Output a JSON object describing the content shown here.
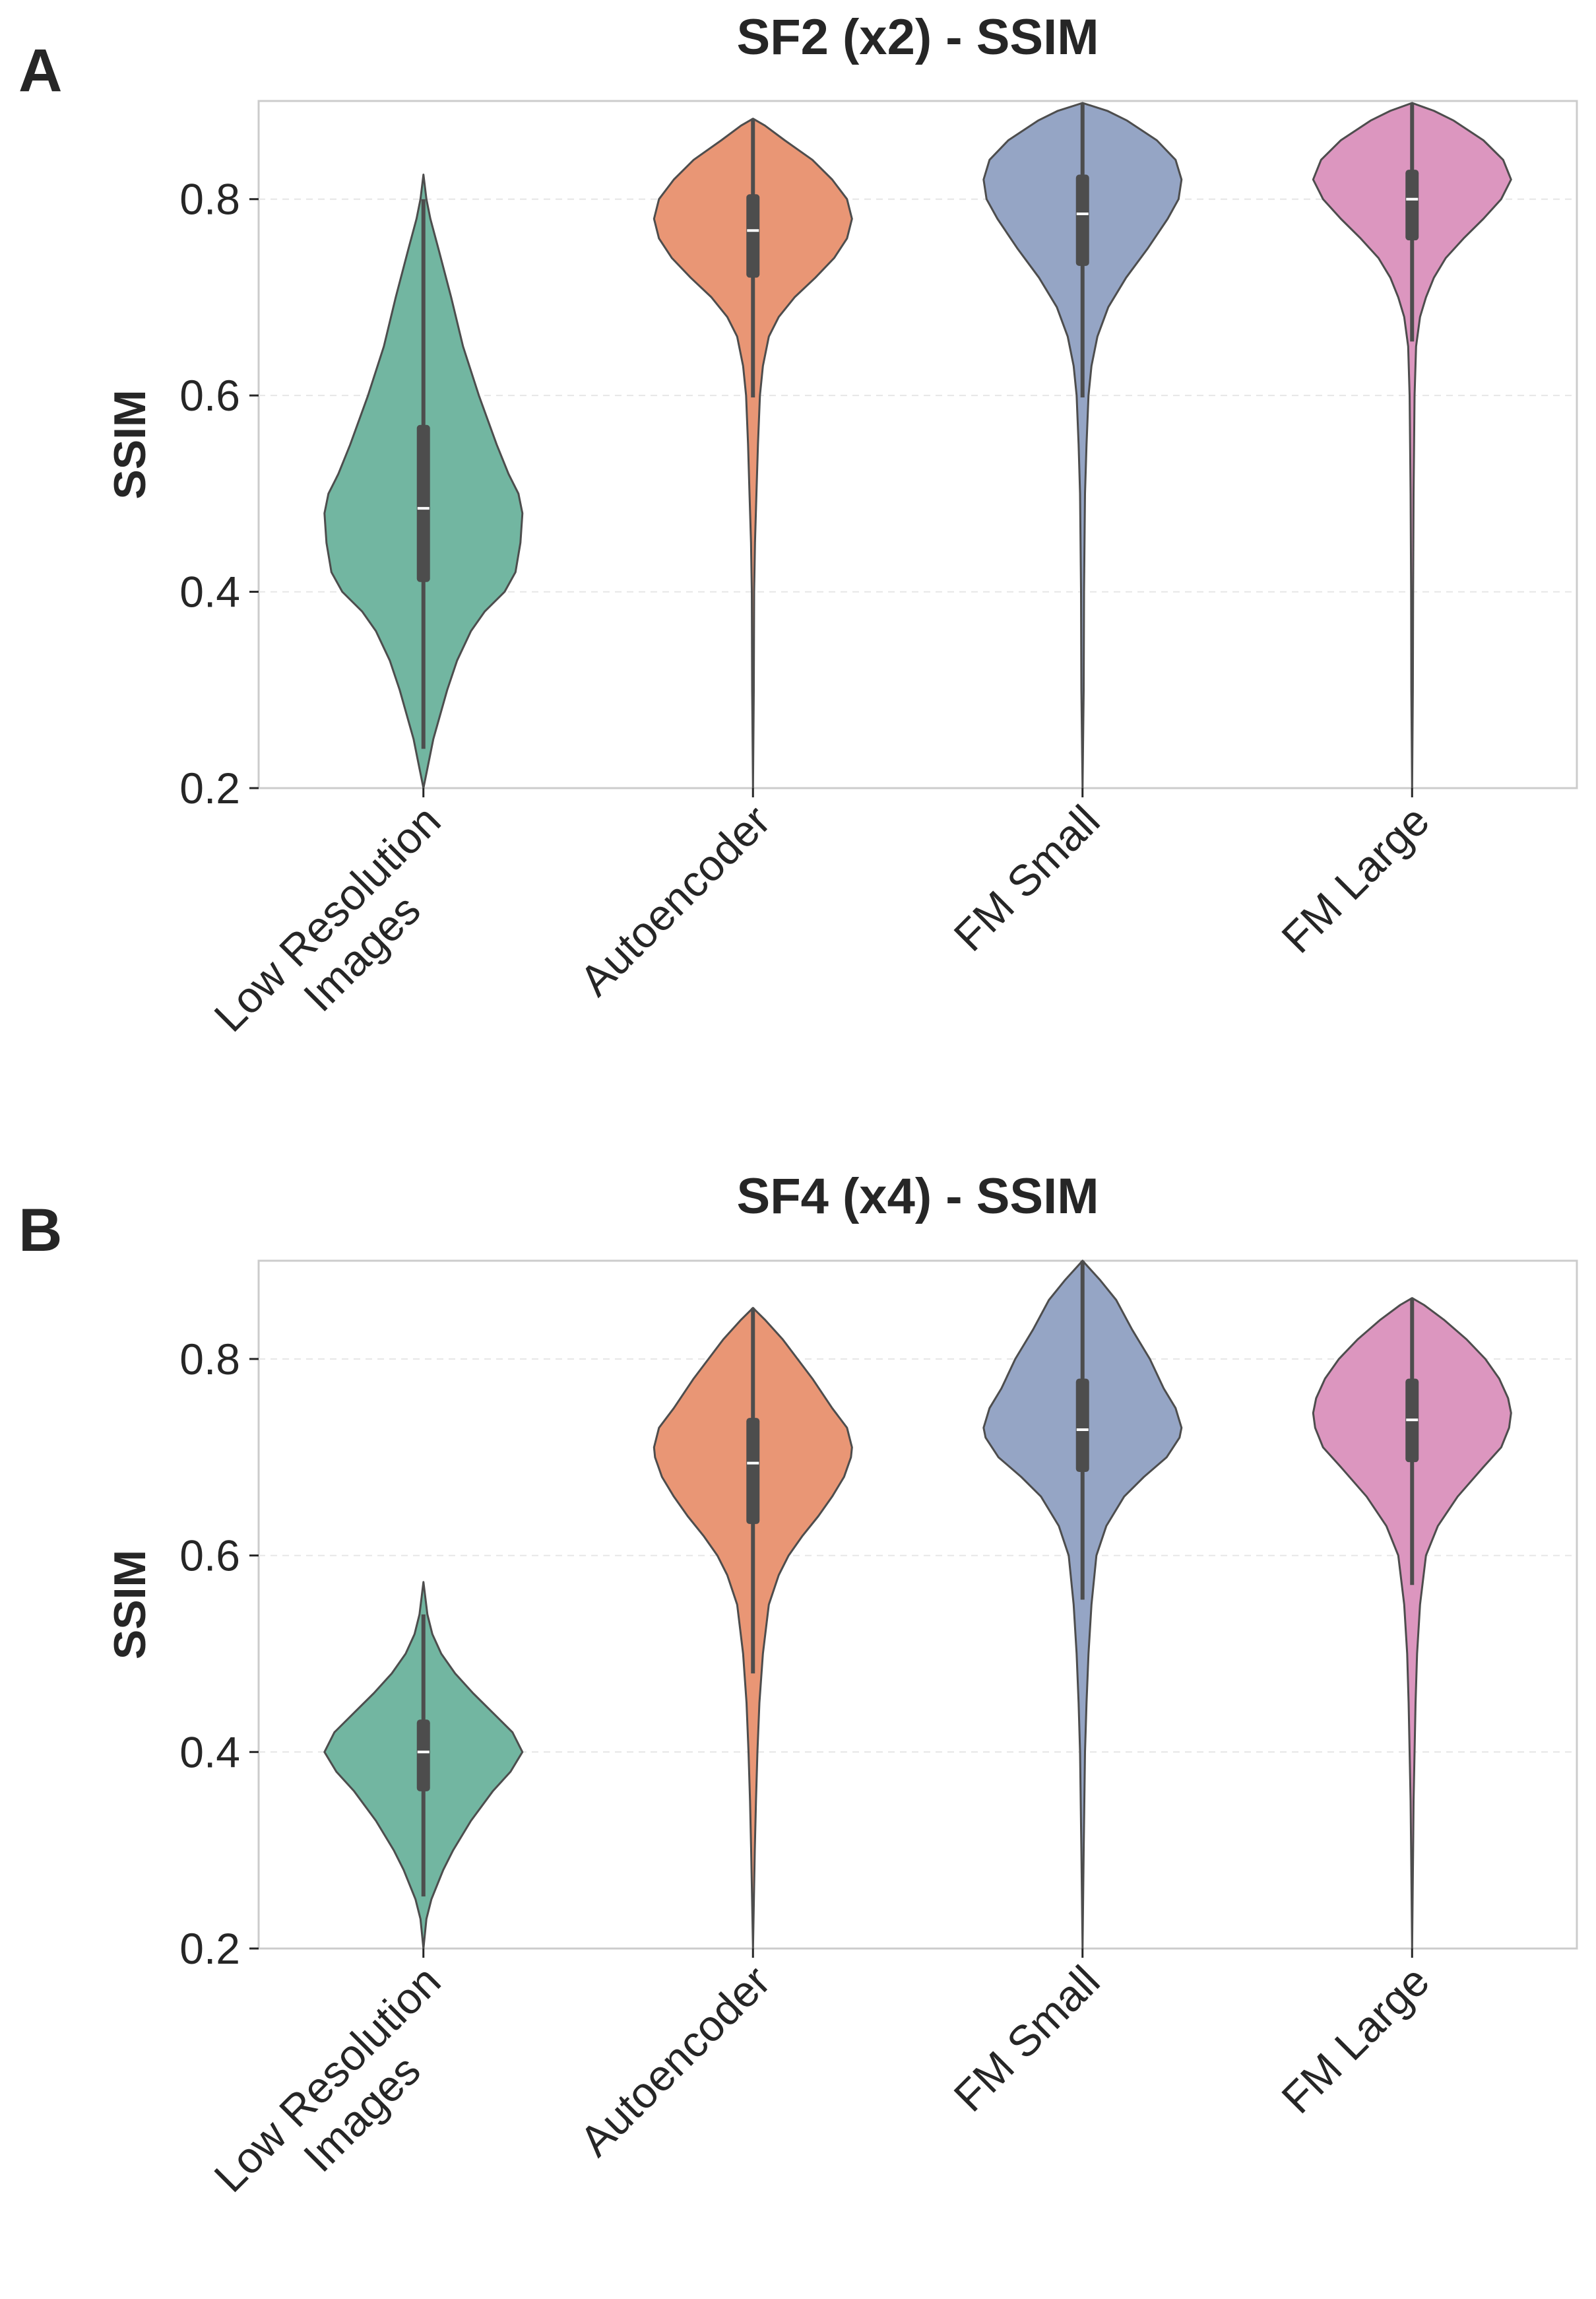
{
  "chart_data": [
    {
      "type": "violin",
      "panel": "A",
      "title": "SF2 (x2) - SSIM",
      "xlabel": "",
      "ylabel": "SSIM",
      "ylim": [
        0.2,
        0.9
      ],
      "yticks": [
        "0.2",
        "0.4",
        "0.6",
        "0.8"
      ],
      "grid": true,
      "categories": [
        {
          "name": "Low Resolution Images",
          "lines": [
            "Low Resolution",
            "Images"
          ],
          "color": "#72b6a1",
          "min": 0.2,
          "max": 0.825,
          "q1": 0.41,
          "median": 0.485,
          "q3": 0.57,
          "whisker_lo": 0.24,
          "whisker_hi": 0.8,
          "width_scale": 0.75,
          "profile": [
            [
              0.2,
              0.0
            ],
            [
              0.22,
              0.04
            ],
            [
              0.25,
              0.1
            ],
            [
              0.3,
              0.24
            ],
            [
              0.33,
              0.34
            ],
            [
              0.36,
              0.48
            ],
            [
              0.38,
              0.62
            ],
            [
              0.4,
              0.82
            ],
            [
              0.42,
              0.93
            ],
            [
              0.45,
              0.98
            ],
            [
              0.48,
              1.0
            ],
            [
              0.5,
              0.96
            ],
            [
              0.52,
              0.86
            ],
            [
              0.55,
              0.74
            ],
            [
              0.6,
              0.56
            ],
            [
              0.65,
              0.4
            ],
            [
              0.7,
              0.28
            ],
            [
              0.75,
              0.15
            ],
            [
              0.78,
              0.07
            ],
            [
              0.8,
              0.03
            ],
            [
              0.825,
              0.0
            ]
          ]
        },
        {
          "name": "Autoencoder",
          "lines": [
            "Autoencoder"
          ],
          "color": "#e99675",
          "min": 0.2,
          "max": 0.882,
          "q1": 0.72,
          "median": 0.768,
          "q3": 0.805,
          "whisker_lo": 0.598,
          "whisker_hi": 0.882,
          "width_scale": 0.75,
          "profile": [
            [
              0.2,
              0.0
            ],
            [
              0.3,
              0.008
            ],
            [
              0.4,
              0.012
            ],
            [
              0.45,
              0.02
            ],
            [
              0.5,
              0.035
            ],
            [
              0.55,
              0.05
            ],
            [
              0.6,
              0.07
            ],
            [
              0.63,
              0.1
            ],
            [
              0.66,
              0.16
            ],
            [
              0.68,
              0.26
            ],
            [
              0.7,
              0.42
            ],
            [
              0.72,
              0.63
            ],
            [
              0.74,
              0.82
            ],
            [
              0.76,
              0.95
            ],
            [
              0.78,
              1.0
            ],
            [
              0.8,
              0.95
            ],
            [
              0.82,
              0.8
            ],
            [
              0.84,
              0.6
            ],
            [
              0.86,
              0.32
            ],
            [
              0.875,
              0.12
            ],
            [
              0.882,
              0.0
            ]
          ]
        },
        {
          "name": "FM Small",
          "lines": [
            "FM Small"
          ],
          "color": "#95a5c5",
          "min": 0.2,
          "max": 0.898,
          "q1": 0.732,
          "median": 0.785,
          "q3": 0.825,
          "whisker_lo": 0.598,
          "whisker_hi": 0.898,
          "width_scale": 0.75,
          "profile": [
            [
              0.2,
              0.0
            ],
            [
              0.3,
              0.012
            ],
            [
              0.4,
              0.015
            ],
            [
              0.5,
              0.025
            ],
            [
              0.55,
              0.04
            ],
            [
              0.6,
              0.06
            ],
            [
              0.63,
              0.09
            ],
            [
              0.66,
              0.15
            ],
            [
              0.69,
              0.26
            ],
            [
              0.72,
              0.44
            ],
            [
              0.75,
              0.66
            ],
            [
              0.78,
              0.86
            ],
            [
              0.8,
              0.97
            ],
            [
              0.82,
              1.0
            ],
            [
              0.84,
              0.94
            ],
            [
              0.86,
              0.75
            ],
            [
              0.88,
              0.45
            ],
            [
              0.89,
              0.25
            ],
            [
              0.898,
              0.0
            ]
          ]
        },
        {
          "name": "FM Large",
          "lines": [
            "FM Large"
          ],
          "color": "#dc96bf",
          "min": 0.2,
          "max": 0.898,
          "q1": 0.758,
          "median": 0.8,
          "q3": 0.83,
          "whisker_lo": 0.655,
          "whisker_hi": 0.898,
          "width_scale": 0.75,
          "profile": [
            [
              0.2,
              0.0
            ],
            [
              0.3,
              0.008
            ],
            [
              0.4,
              0.01
            ],
            [
              0.5,
              0.015
            ],
            [
              0.6,
              0.025
            ],
            [
              0.65,
              0.04
            ],
            [
              0.68,
              0.08
            ],
            [
              0.7,
              0.14
            ],
            [
              0.72,
              0.22
            ],
            [
              0.74,
              0.34
            ],
            [
              0.76,
              0.52
            ],
            [
              0.78,
              0.72
            ],
            [
              0.8,
              0.9
            ],
            [
              0.82,
              1.0
            ],
            [
              0.84,
              0.92
            ],
            [
              0.86,
              0.72
            ],
            [
              0.88,
              0.42
            ],
            [
              0.89,
              0.22
            ],
            [
              0.898,
              0.0
            ]
          ]
        }
      ]
    },
    {
      "type": "violin",
      "panel": "B",
      "title": "SF4 (x4) - SSIM",
      "xlabel": "",
      "ylabel": "SSIM",
      "ylim": [
        0.2,
        0.9
      ],
      "yticks": [
        "0.2",
        "0.4",
        "0.6",
        "0.8"
      ],
      "grid": true,
      "categories": [
        {
          "name": "Low Resolution Images",
          "lines": [
            "Low Resolution",
            "Images"
          ],
          "color": "#72b6a1",
          "min": 0.2,
          "max": 0.573,
          "q1": 0.36,
          "median": 0.4,
          "q3": 0.433,
          "whisker_lo": 0.253,
          "whisker_hi": 0.54,
          "width_scale": 0.75,
          "profile": [
            [
              0.2,
              0.0
            ],
            [
              0.23,
              0.03
            ],
            [
              0.25,
              0.08
            ],
            [
              0.28,
              0.2
            ],
            [
              0.3,
              0.3
            ],
            [
              0.33,
              0.48
            ],
            [
              0.36,
              0.7
            ],
            [
              0.38,
              0.88
            ],
            [
              0.4,
              1.0
            ],
            [
              0.42,
              0.9
            ],
            [
              0.44,
              0.7
            ],
            [
              0.46,
              0.5
            ],
            [
              0.48,
              0.32
            ],
            [
              0.5,
              0.18
            ],
            [
              0.52,
              0.09
            ],
            [
              0.54,
              0.04
            ],
            [
              0.573,
              0.0
            ]
          ]
        },
        {
          "name": "Autoencoder",
          "lines": [
            "Autoencoder"
          ],
          "color": "#e99675",
          "min": 0.2,
          "max": 0.852,
          "q1": 0.632,
          "median": 0.694,
          "q3": 0.74,
          "whisker_lo": 0.48,
          "whisker_hi": 0.852,
          "width_scale": 0.75,
          "profile": [
            [
              0.2,
              0.0
            ],
            [
              0.3,
              0.018
            ],
            [
              0.35,
              0.03
            ],
            [
              0.4,
              0.045
            ],
            [
              0.45,
              0.065
            ],
            [
              0.5,
              0.1
            ],
            [
              0.55,
              0.16
            ],
            [
              0.58,
              0.26
            ],
            [
              0.6,
              0.36
            ],
            [
              0.62,
              0.5
            ],
            [
              0.64,
              0.66
            ],
            [
              0.66,
              0.8
            ],
            [
              0.68,
              0.92
            ],
            [
              0.7,
              0.99
            ],
            [
              0.71,
              1.0
            ],
            [
              0.73,
              0.95
            ],
            [
              0.75,
              0.8
            ],
            [
              0.78,
              0.6
            ],
            [
              0.8,
              0.45
            ],
            [
              0.82,
              0.3
            ],
            [
              0.84,
              0.12
            ],
            [
              0.852,
              0.0
            ]
          ]
        },
        {
          "name": "FM Small",
          "lines": [
            "FM Small"
          ],
          "color": "#95a5c5",
          "min": 0.2,
          "max": 0.9,
          "q1": 0.685,
          "median": 0.728,
          "q3": 0.78,
          "whisker_lo": 0.555,
          "whisker_hi": 0.9,
          "width_scale": 0.75,
          "profile": [
            [
              0.2,
              0.0
            ],
            [
              0.3,
              0.012
            ],
            [
              0.4,
              0.025
            ],
            [
              0.45,
              0.04
            ],
            [
              0.5,
              0.06
            ],
            [
              0.55,
              0.09
            ],
            [
              0.6,
              0.14
            ],
            [
              0.63,
              0.24
            ],
            [
              0.66,
              0.42
            ],
            [
              0.68,
              0.62
            ],
            [
              0.7,
              0.85
            ],
            [
              0.72,
              0.98
            ],
            [
              0.73,
              1.0
            ],
            [
              0.75,
              0.94
            ],
            [
              0.77,
              0.82
            ],
            [
              0.8,
              0.68
            ],
            [
              0.83,
              0.5
            ],
            [
              0.86,
              0.34
            ],
            [
              0.88,
              0.18
            ],
            [
              0.9,
              0.0
            ]
          ]
        },
        {
          "name": "FM Large",
          "lines": [
            "FM Large"
          ],
          "color": "#dc96bf",
          "min": 0.2,
          "max": 0.862,
          "q1": 0.695,
          "median": 0.738,
          "q3": 0.78,
          "whisker_lo": 0.57,
          "whisker_hi": 0.862,
          "width_scale": 0.75,
          "profile": [
            [
              0.2,
              0.0
            ],
            [
              0.3,
              0.01
            ],
            [
              0.35,
              0.015
            ],
            [
              0.4,
              0.025
            ],
            [
              0.45,
              0.035
            ],
            [
              0.5,
              0.05
            ],
            [
              0.55,
              0.08
            ],
            [
              0.6,
              0.14
            ],
            [
              0.63,
              0.26
            ],
            [
              0.66,
              0.46
            ],
            [
              0.69,
              0.72
            ],
            [
              0.71,
              0.9
            ],
            [
              0.73,
              0.98
            ],
            [
              0.745,
              1.0
            ],
            [
              0.76,
              0.97
            ],
            [
              0.78,
              0.88
            ],
            [
              0.8,
              0.74
            ],
            [
              0.82,
              0.55
            ],
            [
              0.84,
              0.32
            ],
            [
              0.855,
              0.12
            ],
            [
              0.862,
              0.0
            ]
          ]
        }
      ]
    }
  ]
}
